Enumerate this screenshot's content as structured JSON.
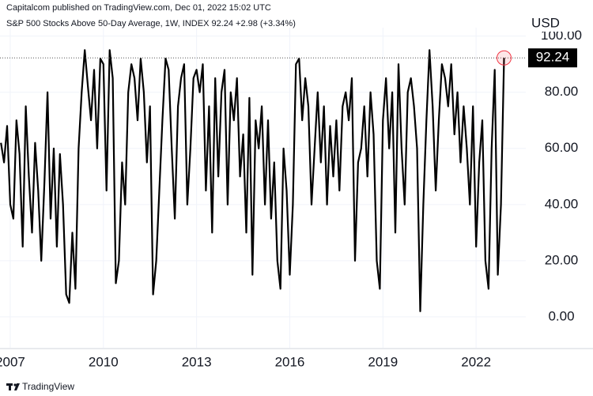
{
  "header": "Capitalcom published on TradingView.com, Dec 01, 2022 15:02 UTC",
  "footer": "TradingView",
  "chart_data": {
    "type": "line",
    "title": "S&P 500 Stocks Above 50-Day Average, 1W, INDEX  92.24  +2.98 (+3.34%)",
    "currency": "USD",
    "color": "#000000",
    "grid": true,
    "xlim": [
      2006.67,
      2023.6
    ],
    "xticks": [
      2007,
      2010,
      2013,
      2016,
      2019,
      2022
    ],
    "ylim": [
      -11,
      103
    ],
    "yticks": [
      {
        "value": 0,
        "label": "0.00"
      },
      {
        "value": 20,
        "label": "20.00"
      },
      {
        "value": 40,
        "label": "40.00"
      },
      {
        "value": 60,
        "label": "60.00"
      },
      {
        "value": 80,
        "label": "80.00"
      },
      {
        "value": 100,
        "label": "100.00"
      }
    ],
    "x": [
      2006.7,
      2006.8,
      2006.9,
      2007,
      2007.1,
      2007.2,
      2007.3,
      2007.4,
      2007.5,
      2007.6,
      2007.7,
      2007.8,
      2007.9,
      2008,
      2008.1,
      2008.2,
      2008.3,
      2008.4,
      2008.5,
      2008.6,
      2008.7,
      2008.8,
      2008.9,
      2009,
      2009.1,
      2009.2,
      2009.3,
      2009.4,
      2009.5,
      2009.6,
      2009.7,
      2009.8,
      2009.9,
      2010,
      2010.1,
      2010.2,
      2010.3,
      2010.4,
      2010.5,
      2010.6,
      2010.7,
      2010.8,
      2010.9,
      2011,
      2011.1,
      2011.2,
      2011.3,
      2011.4,
      2011.5,
      2011.6,
      2011.7,
      2011.8,
      2011.9,
      2012,
      2012.1,
      2012.2,
      2012.3,
      2012.4,
      2012.5,
      2012.6,
      2012.7,
      2012.8,
      2012.9,
      2013,
      2013.1,
      2013.2,
      2013.3,
      2013.4,
      2013.5,
      2013.6,
      2013.7,
      2013.8,
      2013.9,
      2014,
      2014.1,
      2014.2,
      2014.3,
      2014.4,
      2014.5,
      2014.6,
      2014.7,
      2014.8,
      2014.9,
      2015,
      2015.1,
      2015.2,
      2015.3,
      2015.4,
      2015.5,
      2015.6,
      2015.7,
      2015.8,
      2015.9,
      2016,
      2016.1,
      2016.2,
      2016.3,
      2016.4,
      2016.5,
      2016.6,
      2016.7,
      2016.8,
      2016.9,
      2017,
      2017.1,
      2017.2,
      2017.3,
      2017.4,
      2017.5,
      2017.6,
      2017.7,
      2017.8,
      2017.9,
      2018,
      2018.1,
      2018.2,
      2018.3,
      2018.4,
      2018.5,
      2018.6,
      2018.7,
      2018.8,
      2018.9,
      2019,
      2019.1,
      2019.2,
      2019.3,
      2019.4,
      2019.5,
      2019.6,
      2019.7,
      2019.8,
      2019.9,
      2020,
      2020.1,
      2020.2,
      2020.3,
      2020.4,
      2020.5,
      2020.6,
      2020.7,
      2020.8,
      2020.9,
      2021,
      2021.1,
      2021.2,
      2021.3,
      2021.4,
      2021.5,
      2021.6,
      2021.7,
      2021.8,
      2021.9,
      2022,
      2022.1,
      2022.2,
      2022.3,
      2022.4,
      2022.5,
      2022.6,
      2022.7,
      2022.8,
      2022.9
    ],
    "values": [
      62,
      55,
      68,
      40,
      35,
      70,
      58,
      25,
      75,
      50,
      30,
      62,
      45,
      20,
      48,
      80,
      35,
      60,
      25,
      58,
      40,
      8,
      5,
      30,
      10,
      60,
      80,
      95,
      82,
      70,
      88,
      60,
      92,
      90,
      45,
      95,
      85,
      12,
      20,
      55,
      40,
      80,
      90,
      85,
      70,
      92,
      80,
      55,
      75,
      8,
      20,
      45,
      70,
      92,
      88,
      60,
      35,
      75,
      85,
      90,
      40,
      60,
      85,
      88,
      80,
      90,
      45,
      75,
      30,
      85,
      50,
      80,
      88,
      40,
      80,
      70,
      85,
      50,
      65,
      30,
      78,
      15,
      70,
      60,
      75,
      40,
      70,
      35,
      55,
      20,
      10,
      60,
      45,
      15,
      40,
      90,
      92,
      70,
      85,
      75,
      40,
      60,
      80,
      55,
      75,
      40,
      68,
      50,
      70,
      45,
      75,
      80,
      70,
      85,
      20,
      55,
      60,
      75,
      50,
      80,
      65,
      20,
      10,
      70,
      85,
      60,
      80,
      30,
      90,
      60,
      40,
      80,
      85,
      75,
      60,
      2,
      40,
      70,
      95,
      75,
      45,
      70,
      90,
      85,
      75,
      90,
      65,
      80,
      55,
      75,
      60,
      40,
      75,
      25,
      55,
      70,
      20,
      10,
      60,
      88,
      15,
      40,
      92.24
    ]
  }
}
